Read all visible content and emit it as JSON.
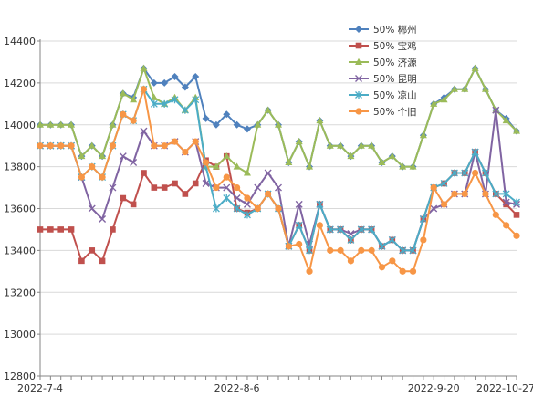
{
  "chart_data": {
    "type": "line",
    "ylim": [
      12800,
      14400
    ],
    "yticks": [
      12800,
      13000,
      13200,
      13400,
      13600,
      13800,
      14000,
      14200,
      14400
    ],
    "ytick_labels": [
      "12800",
      "13000",
      "13200",
      "13400",
      "13600",
      "13800",
      "14000",
      "14200",
      "14400"
    ],
    "xtick_labels": [
      {
        "label": "2022-7-4",
        "index": 0
      },
      {
        "label": "2022-8-6",
        "index": 19
      },
      {
        "label": "2022-9-20",
        "index": 38
      },
      {
        "label": "2022-10-27",
        "index": 57
      }
    ],
    "legend_position": "top-right",
    "series": [
      {
        "name": "50% 郴州",
        "color": "#4f81bd",
        "marker": "diamond",
        "values": [
          14000,
          14000,
          14000,
          14000,
          13850,
          13900,
          13850,
          14000,
          14150,
          14130,
          14270,
          14200,
          14200,
          14230,
          14180,
          14230,
          14030,
          14000,
          14050,
          14000,
          13980,
          14000,
          14070,
          14000,
          13820,
          13920,
          13800,
          14020,
          13900,
          13900,
          13850,
          13900,
          13900,
          13820,
          13850,
          13800,
          13800,
          13950,
          14100,
          14130,
          14170,
          14170,
          14270,
          14170,
          14070,
          14030,
          13970
        ]
      },
      {
        "name": "50% 宝鸡",
        "color": "#c0504d",
        "marker": "square",
        "values": [
          13500,
          13500,
          13500,
          13500,
          13350,
          13400,
          13350,
          13500,
          13650,
          13620,
          13770,
          13700,
          13700,
          13720,
          13670,
          13720,
          13830,
          13800,
          13850,
          13600,
          13580,
          13600,
          13670,
          13600,
          13420,
          13520,
          13400,
          13620,
          13500,
          13500,
          13450,
          13500,
          13500,
          13420,
          13450,
          13400,
          13400,
          13550,
          13700,
          13720,
          13770,
          13770,
          13870,
          13770,
          13670,
          13620,
          13570
        ]
      },
      {
        "name": "50% 济源",
        "color": "#9bbb59",
        "marker": "triangle",
        "values": [
          14000,
          14000,
          14000,
          14000,
          13850,
          13900,
          13850,
          14000,
          14150,
          14120,
          14270,
          14130,
          14100,
          14130,
          14070,
          14130,
          13800,
          13800,
          13850,
          13800,
          13770,
          14000,
          14070,
          14000,
          13820,
          13920,
          13800,
          14020,
          13900,
          13900,
          13850,
          13900,
          13900,
          13820,
          13850,
          13800,
          13800,
          13950,
          14100,
          14120,
          14170,
          14170,
          14270,
          14170,
          14070,
          14020,
          13970
        ]
      },
      {
        "name": "50% 昆明",
        "color": "#8064a2",
        "marker": "x",
        "values": [
          13900,
          13900,
          13900,
          13900,
          13750,
          13600,
          13550,
          13700,
          13850,
          13820,
          13970,
          13900,
          13900,
          13920,
          13870,
          13920,
          13720,
          13700,
          13700,
          13650,
          13620,
          13700,
          13770,
          13700,
          13420,
          13620,
          13430,
          13620,
          13500,
          13500,
          13480,
          13500,
          13500,
          13420,
          13450,
          13400,
          13400,
          13550,
          13600,
          13620,
          13670,
          13670,
          13870,
          13670,
          14070,
          13630,
          13620
        ]
      },
      {
        "name": "50% 凉山",
        "color": "#4bacc6",
        "marker": "star",
        "values": [
          13900,
          13900,
          13900,
          13900,
          13750,
          13800,
          13750,
          13900,
          14050,
          14020,
          14170,
          14100,
          14100,
          14120,
          14070,
          14120,
          13800,
          13600,
          13650,
          13600,
          13570,
          13600,
          13670,
          13600,
          13420,
          13520,
          13400,
          13620,
          13500,
          13500,
          13450,
          13500,
          13500,
          13420,
          13450,
          13400,
          13400,
          13550,
          13700,
          13720,
          13770,
          13770,
          13870,
          13770,
          13670,
          13670,
          13630
        ]
      },
      {
        "name": "50% 个旧",
        "color": "#f79646",
        "marker": "circle",
        "values": [
          13900,
          13900,
          13900,
          13900,
          13750,
          13800,
          13750,
          13900,
          14050,
          14020,
          14170,
          13900,
          13900,
          13920,
          13870,
          13920,
          13820,
          13700,
          13750,
          13700,
          13650,
          13600,
          13670,
          13600,
          13420,
          13430,
          13300,
          13520,
          13400,
          13400,
          13350,
          13400,
          13400,
          13320,
          13350,
          13300,
          13300,
          13450,
          13700,
          13620,
          13670,
          13670,
          13770,
          13670,
          13570,
          13520,
          13470
        ]
      }
    ]
  }
}
